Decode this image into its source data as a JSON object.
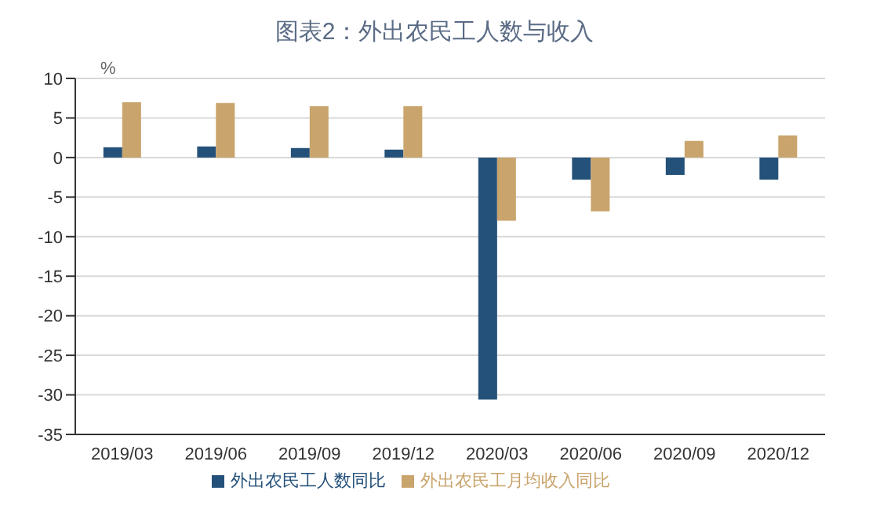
{
  "chart_data": {
    "type": "bar",
    "title": "图表2：外出农民工人数与收入",
    "ylabel": "%",
    "categories": [
      "2019/03",
      "2019/06",
      "2019/09",
      "2019/12",
      "2020/03",
      "2020/06",
      "2020/09",
      "2020/12"
    ],
    "series": [
      {
        "name": "外出农民工人数同比",
        "color": "#24517a",
        "values": [
          1.3,
          1.4,
          1.2,
          1.0,
          -30.6,
          -2.8,
          -2.2,
          -2.8
        ]
      },
      {
        "name": "外出农民工月均收入同比",
        "color": "#c9a46c",
        "values": [
          7.0,
          6.9,
          6.5,
          6.5,
          -8.0,
          -6.8,
          2.1,
          2.8
        ]
      }
    ],
    "ylim": [
      -35,
      10
    ],
    "yticks": [
      -35,
      -30,
      -25,
      -20,
      -15,
      -10,
      -5,
      0,
      5,
      10
    ],
    "grid": "y",
    "legend": "bottom"
  }
}
